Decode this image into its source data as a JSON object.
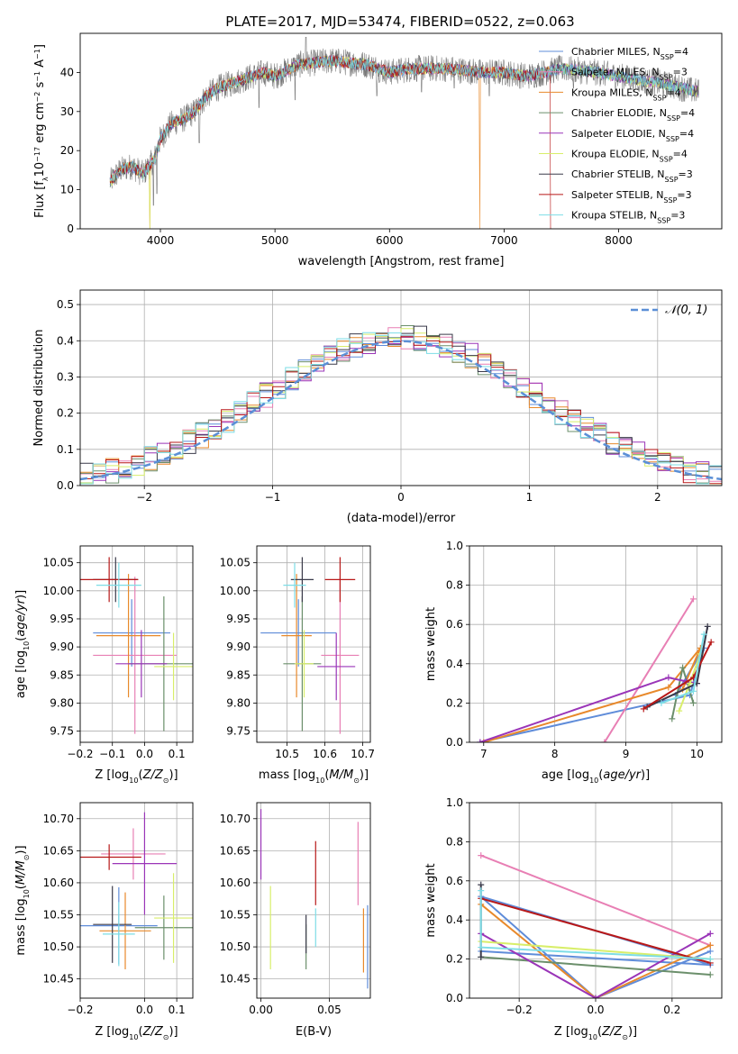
{
  "title": "PLATE=2017, MJD=53474, FIBERID=0522, z=0.063",
  "colors": [
    "#5f8cd9",
    "#e87fb4",
    "#e8892b",
    "#6b8f6b",
    "#9a35b8",
    "#d8ee6a",
    "#3a3a4a",
    "#b81818",
    "#7ddde6"
  ],
  "legend": [
    "Chabrier MILES, N_SSP=4",
    "Salpeter MILES, N_SSP=3",
    "Kroupa MILES, N_SSP=4",
    "Chabrier ELODIE, N_SSP=4",
    "Salpeter ELODIE, N_SSP=4",
    "Kroupa ELODIE, N_SSP=4",
    "Chabrier STELIB, N_SSP=3",
    "Salpeter STELIB, N_SSP=3",
    "Kroupa STELIB, N_SSP=3"
  ],
  "hist_legend": "𝒩(0, 1)",
  "chart_data": [
    {
      "id": "spectrum",
      "type": "line",
      "title": "PLATE=2017, MJD=53474, FIBERID=0522, z=0.063",
      "xlabel": "wavelength [Angstrom, rest frame]",
      "ylabel": "Flux [f_λ 10^-17 erg cm^-2 s^-1 A^-1]",
      "xlim": [
        3300,
        8900
      ],
      "ylim": [
        0,
        50
      ],
      "xticks": [
        4000,
        5000,
        6000,
        7000,
        8000
      ],
      "yticks": [
        0,
        10,
        20,
        30,
        40
      ],
      "shape": [
        [
          3560,
          12
        ],
        [
          3650,
          15
        ],
        [
          3750,
          16
        ],
        [
          3850,
          14
        ],
        [
          3950,
          18
        ],
        [
          4000,
          23
        ],
        [
          4100,
          27
        ],
        [
          4200,
          28
        ],
        [
          4300,
          30
        ],
        [
          4400,
          34
        ],
        [
          4500,
          36
        ],
        [
          4700,
          38
        ],
        [
          4900,
          40
        ],
        [
          5000,
          39
        ],
        [
          5200,
          42
        ],
        [
          5500,
          43
        ],
        [
          5800,
          42
        ],
        [
          6000,
          40
        ],
        [
          6200,
          41
        ],
        [
          6500,
          41
        ],
        [
          6800,
          40
        ],
        [
          7000,
          40
        ],
        [
          7200,
          39
        ],
        [
          7500,
          41
        ],
        [
          7800,
          40
        ],
        [
          8000,
          39
        ],
        [
          8200,
          38
        ],
        [
          8400,
          37
        ],
        [
          8700,
          35
        ]
      ],
      "spikes": [
        [
          3940,
          6
        ],
        [
          3970,
          9
        ],
        [
          4340,
          22
        ],
        [
          4861,
          31
        ],
        [
          5175,
          33
        ],
        [
          5270,
          49
        ],
        [
          5890,
          34
        ],
        [
          6280,
          35
        ],
        [
          6565,
          36
        ],
        [
          6870,
          34
        ],
        [
          7605,
          36
        ]
      ]
    },
    {
      "id": "residuals",
      "type": "histogram",
      "xlabel": "(data-model)/error",
      "ylabel": "Normed distribution",
      "xlim": [
        -2.5,
        2.5
      ],
      "ylim": [
        0,
        0.54
      ],
      "xticks": [
        -2,
        -1,
        0,
        1,
        2
      ],
      "yticks": [
        0.0,
        0.1,
        0.2,
        0.3,
        0.4,
        0.5
      ],
      "bins": {
        "start": -2.5,
        "width": 0.1,
        "count": 50
      },
      "reference": "standard normal N(0,1)"
    },
    {
      "id": "age-Z",
      "type": "scatter",
      "xlabel": "Z [log10(Z/Z_sun)]",
      "ylabel": "age  [log10(age/yr)]",
      "xlim": [
        -0.2,
        0.15
      ],
      "ylim": [
        9.73,
        10.08
      ],
      "xticks": [
        -0.2,
        -0.1,
        0.0,
        0.1
      ],
      "yticks": [
        9.75,
        9.8,
        9.85,
        9.9,
        9.95,
        10.0,
        10.05
      ],
      "points": [
        {
          "x": -0.04,
          "y": 9.925,
          "xerr": 0.12,
          "yerr": 0.06
        },
        {
          "x": -0.03,
          "y": 9.885,
          "xerr": 0.13,
          "yerr": 0.14
        },
        {
          "x": -0.05,
          "y": 9.92,
          "xerr": 0.1,
          "yerr": 0.11
        },
        {
          "x": 0.06,
          "y": 9.87,
          "xerr": 0.11,
          "yerr": 0.12
        },
        {
          "x": -0.01,
          "y": 9.87,
          "xerr": 0.08,
          "yerr": 0.06
        },
        {
          "x": 0.09,
          "y": 9.865,
          "xerr": 0.06,
          "yerr": 0.06
        },
        {
          "x": -0.09,
          "y": 10.02,
          "xerr": 0.07,
          "yerr": 0.04
        },
        {
          "x": -0.11,
          "y": 10.02,
          "xerr": 0.09,
          "yerr": 0.04
        },
        {
          "x": -0.08,
          "y": 10.01,
          "xerr": 0.07,
          "yerr": 0.04
        }
      ]
    },
    {
      "id": "age-mass",
      "type": "scatter",
      "xlabel": "mass [log10(M/M_sun)]",
      "ylabel": "",
      "xlim": [
        10.42,
        10.72
      ],
      "ylim": [
        9.73,
        10.08
      ],
      "xticks": [
        10.5,
        10.6,
        10.7
      ],
      "yticks": [
        9.75,
        9.8,
        9.85,
        9.9,
        9.95,
        10.0,
        10.05
      ],
      "points": [
        {
          "x": 10.53,
          "y": 9.925,
          "xerr": 0.1,
          "yerr": 0.06
        },
        {
          "x": 10.64,
          "y": 9.885,
          "xerr": 0.05,
          "yerr": 0.14
        },
        {
          "x": 10.525,
          "y": 9.92,
          "xerr": 0.04,
          "yerr": 0.11
        },
        {
          "x": 10.54,
          "y": 9.87,
          "xerr": 0.05,
          "yerr": 0.12
        },
        {
          "x": 10.63,
          "y": 9.865,
          "xerr": 0.05,
          "yerr": 0.06
        },
        {
          "x": 10.545,
          "y": 9.87,
          "xerr": 0.025,
          "yerr": 0.06
        },
        {
          "x": 10.54,
          "y": 10.02,
          "xerr": 0.03,
          "yerr": 0.04
        },
        {
          "x": 10.64,
          "y": 10.02,
          "xerr": 0.04,
          "yerr": 0.04
        },
        {
          "x": 10.52,
          "y": 10.01,
          "xerr": 0.03,
          "yerr": 0.04
        }
      ]
    },
    {
      "id": "weight-age",
      "type": "line",
      "xlabel": "age  [log10(age/yr)]",
      "ylabel": "mass weight",
      "xlim": [
        6.8,
        10.35
      ],
      "ylim": [
        0,
        1
      ],
      "xticks": [
        7,
        8,
        9,
        10
      ],
      "yticks": [
        0.0,
        0.2,
        0.4,
        0.6,
        0.8,
        1.0
      ],
      "series": [
        [
          [
            6.95,
            0
          ],
          [
            9.9,
            0.24
          ],
          [
            10.1,
            0.48
          ],
          [
            9.7,
            0.24
          ]
        ],
        [
          [
            8.7,
            0
          ],
          [
            9.95,
            0.73
          ]
        ],
        [
          [
            7.0,
            0
          ],
          [
            9.6,
            0.28
          ],
          [
            10.05,
            0.48
          ],
          [
            9.8,
            0.27
          ]
        ],
        [
          [
            9.65,
            0.12
          ],
          [
            9.8,
            0.38
          ],
          [
            9.95,
            0.2
          ]
        ],
        [
          [
            6.95,
            0
          ],
          [
            9.6,
            0.33
          ],
          [
            9.85,
            0.31
          ],
          [
            10.0,
            0.3
          ]
        ],
        [
          [
            9.75,
            0.16
          ],
          [
            9.9,
            0.3
          ],
          [
            10.05,
            0.45
          ]
        ],
        [
          [
            9.3,
            0.18
          ],
          [
            10.0,
            0.3
          ],
          [
            10.15,
            0.59
          ]
        ],
        [
          [
            9.25,
            0.17
          ],
          [
            9.95,
            0.33
          ],
          [
            10.2,
            0.51
          ]
        ],
        [
          [
            9.5,
            0.2
          ],
          [
            9.95,
            0.26
          ],
          [
            10.1,
            0.55
          ]
        ]
      ]
    },
    {
      "id": "mass-Z",
      "type": "scatter",
      "xlabel": "Z [log10(Z/Z_sun)]",
      "ylabel": "mass [log10(M/M_sun)]",
      "xlim": [
        -0.2,
        0.15
      ],
      "ylim": [
        10.42,
        10.725
      ],
      "xticks": [
        -0.2,
        0.0,
        0.1
      ],
      "yticks": [
        10.45,
        10.5,
        10.55,
        10.6,
        10.65,
        10.7
      ],
      "points": [
        {
          "x": -0.08,
          "y": 10.533,
          "xerr": 0.12,
          "yerr": 0.06
        },
        {
          "x": -0.035,
          "y": 10.645,
          "xerr": 0.1,
          "yerr": 0.04
        },
        {
          "x": -0.06,
          "y": 10.525,
          "xerr": 0.08,
          "yerr": 0.06
        },
        {
          "x": 0.06,
          "y": 10.53,
          "xerr": 0.09,
          "yerr": 0.05
        },
        {
          "x": 0.0,
          "y": 10.63,
          "xerr": 0.1,
          "yerr": 0.08
        },
        {
          "x": 0.09,
          "y": 10.545,
          "xerr": 0.06,
          "yerr": 0.07
        },
        {
          "x": -0.1,
          "y": 10.535,
          "xerr": 0.06,
          "yerr": 0.06
        },
        {
          "x": -0.11,
          "y": 10.64,
          "xerr": 0.1,
          "yerr": 0.02
        },
        {
          "x": -0.08,
          "y": 10.52,
          "xerr": 0.05,
          "yerr": 0.05
        }
      ]
    },
    {
      "id": "mass-EBV",
      "type": "scatter",
      "xlabel": "E(B-V)",
      "ylabel": "",
      "xlim": [
        -0.003,
        0.08
      ],
      "ylim": [
        10.42,
        10.725
      ],
      "xticks": [
        0.0,
        0.05
      ],
      "yticks": [
        10.45,
        10.5,
        10.55,
        10.6,
        10.65,
        10.7
      ],
      "points": [
        {
          "x": 0.078,
          "y": 10.5,
          "xerr": 0,
          "yerr": 0.065
        },
        {
          "x": 0.071,
          "y": 10.63,
          "xerr": 0,
          "yerr": 0.065
        },
        {
          "x": 0.075,
          "y": 10.51,
          "xerr": 0,
          "yerr": 0.05
        },
        {
          "x": 0.033,
          "y": 10.5,
          "xerr": 0,
          "yerr": 0.035
        },
        {
          "x": 0.0,
          "y": 10.66,
          "xerr": 0,
          "yerr": 0.055
        },
        {
          "x": 0.007,
          "y": 10.53,
          "xerr": 0,
          "yerr": 0.065
        },
        {
          "x": 0.033,
          "y": 10.52,
          "xerr": 0,
          "yerr": 0.03
        },
        {
          "x": 0.04,
          "y": 10.615,
          "xerr": 0,
          "yerr": 0.05
        },
        {
          "x": 0.04,
          "y": 10.53,
          "xerr": 0,
          "yerr": 0.03
        }
      ]
    },
    {
      "id": "weight-Z",
      "type": "line",
      "xlabel": "Z [log10(Z/Z_sun)]",
      "ylabel": "mass weight",
      "xlim": [
        -0.33,
        0.33
      ],
      "ylim": [
        0,
        1
      ],
      "xticks": [
        -0.2,
        0.0,
        0.2
      ],
      "yticks": [
        0.0,
        0.2,
        0.4,
        0.6,
        0.8,
        1.0
      ],
      "series": [
        [
          [
            -0.3,
            0.24
          ],
          [
            0.3,
            0.17
          ],
          [
            -0.3,
            0.52
          ],
          [
            0.0,
            0
          ],
          [
            0.3,
            0.24
          ]
        ],
        [
          [
            -0.3,
            0.73
          ],
          [
            0.3,
            0.27
          ]
        ],
        [
          [
            -0.3,
            0.48
          ],
          [
            0.0,
            0
          ],
          [
            0.3,
            0.27
          ]
        ],
        [
          [
            -0.3,
            0.21
          ],
          [
            0.3,
            0.12
          ]
        ],
        [
          [
            -0.3,
            0.33
          ],
          [
            0.0,
            0
          ],
          [
            0.3,
            0.33
          ]
        ],
        [
          [
            -0.3,
            0.29
          ],
          [
            0.3,
            0.2
          ]
        ],
        [
          [
            -0.3,
            0.58
          ],
          [
            -0.3,
            0.21
          ]
        ],
        [
          [
            -0.3,
            0.51
          ],
          [
            0.3,
            0.18
          ]
        ],
        [
          [
            -0.3,
            0.55
          ],
          [
            -0.3,
            0.26
          ],
          [
            0.3,
            0.2
          ]
        ]
      ]
    }
  ]
}
